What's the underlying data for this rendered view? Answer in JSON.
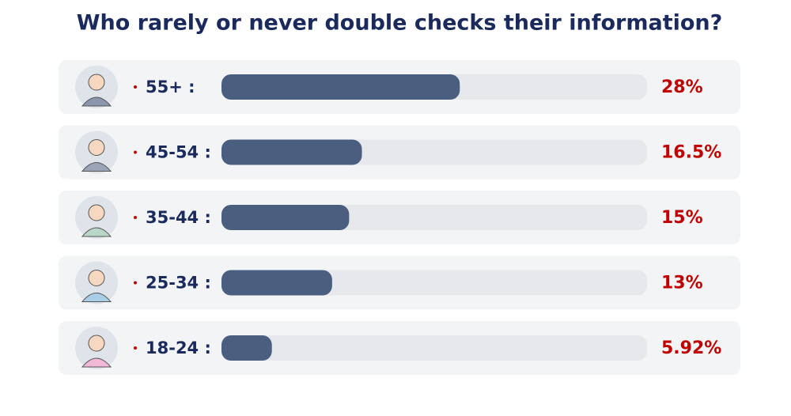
{
  "chart_data": {
    "type": "bar",
    "orientation": "horizontal",
    "title": "Who rarely or never double checks their information?",
    "categories": [
      "55+ :",
      "45-54 :",
      "35-44 :",
      "25-34 :",
      "18-24 :"
    ],
    "values": [
      28,
      16.5,
      15,
      13,
      5.92
    ],
    "value_labels": [
      "28%",
      "16.5%",
      "15%",
      "13%",
      "5.92%"
    ],
    "color": "#4a5f80",
    "xlim": [
      0,
      50
    ]
  }
}
